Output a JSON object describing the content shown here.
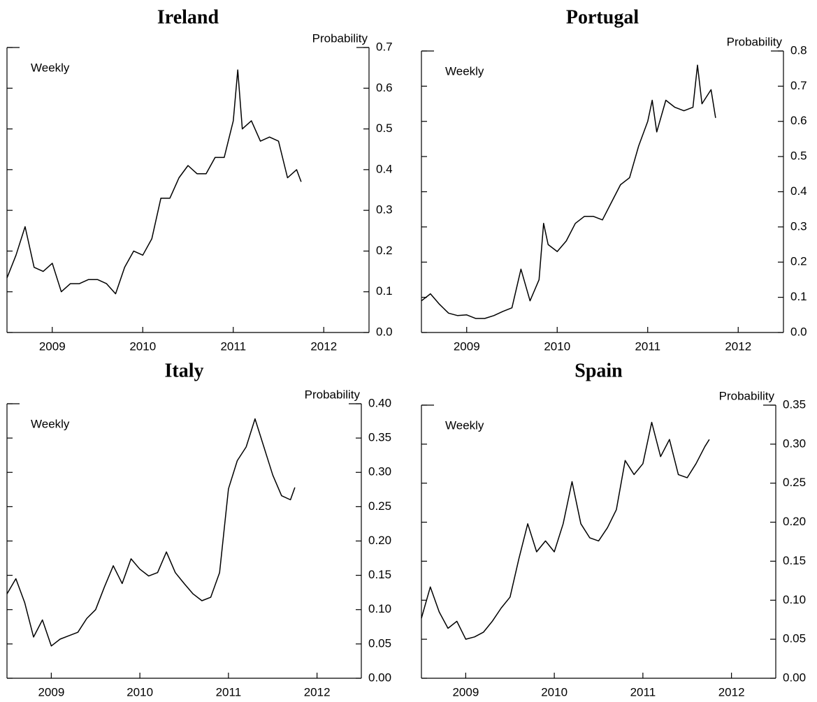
{
  "chart_data": [
    {
      "type": "line",
      "title": "Ireland",
      "ylabel": "Probability",
      "annotation": "Weekly",
      "color": "#000000",
      "x": [
        2009.0,
        2009.1,
        2009.2,
        2009.3,
        2009.4,
        2009.5,
        2009.6,
        2009.7,
        2009.8,
        2009.9,
        2010.0,
        2010.1,
        2010.2,
        2010.3,
        2010.4,
        2010.5,
        2010.6,
        2010.7,
        2010.8,
        2010.9,
        2011.0,
        2011.1,
        2011.2,
        2011.3,
        2011.4,
        2011.5,
        2011.55,
        2011.6,
        2011.7,
        2011.8,
        2011.9,
        2012.0,
        2012.1,
        2012.2,
        2012.25
      ],
      "values": [
        0.134,
        0.19,
        0.26,
        0.16,
        0.15,
        0.17,
        0.1,
        0.12,
        0.12,
        0.13,
        0.13,
        0.12,
        0.095,
        0.16,
        0.2,
        0.19,
        0.23,
        0.33,
        0.33,
        0.38,
        0.41,
        0.39,
        0.39,
        0.43,
        0.43,
        0.52,
        0.645,
        0.5,
        0.52,
        0.47,
        0.48,
        0.47,
        0.38,
        0.4,
        0.37
      ],
      "xlim": [
        2009,
        2013
      ],
      "xticks": [
        {
          "value": 2009.5,
          "label": "2009"
        },
        {
          "value": 2010.5,
          "label": "2010"
        },
        {
          "value": 2011.5,
          "label": "2011"
        },
        {
          "value": 2012.5,
          "label": "2012"
        }
      ],
      "ylim": [
        0,
        0.7
      ],
      "yticks": [
        {
          "value": 0,
          "label": "0.0"
        },
        0.1,
        0.2,
        0.3,
        0.4,
        0.5,
        0.6,
        0.7
      ]
    },
    {
      "type": "line",
      "title": "Portugal",
      "ylabel": "Probability",
      "annotation": "Weekly",
      "color": "#000000",
      "x": [
        2009.0,
        2009.1,
        2009.2,
        2009.3,
        2009.4,
        2009.5,
        2009.6,
        2009.7,
        2009.8,
        2009.9,
        2010.0,
        2010.1,
        2010.2,
        2010.3,
        2010.35,
        2010.4,
        2010.5,
        2010.6,
        2010.7,
        2010.8,
        2010.9,
        2011.0,
        2011.1,
        2011.2,
        2011.3,
        2011.4,
        2011.5,
        2011.55,
        2011.6,
        2011.7,
        2011.8,
        2011.9,
        2012.0,
        2012.05,
        2012.1,
        2012.2,
        2012.25
      ],
      "values": [
        0.09,
        0.11,
        0.08,
        0.055,
        0.048,
        0.05,
        0.04,
        0.04,
        0.048,
        0.06,
        0.07,
        0.18,
        0.09,
        0.15,
        0.31,
        0.25,
        0.23,
        0.26,
        0.31,
        0.33,
        0.33,
        0.32,
        0.37,
        0.42,
        0.44,
        0.53,
        0.6,
        0.66,
        0.57,
        0.66,
        0.64,
        0.63,
        0.64,
        0.76,
        0.65,
        0.69,
        0.61
      ],
      "xlim": [
        2009,
        2013
      ],
      "xticks": [
        {
          "value": 2009.5,
          "label": "2009"
        },
        {
          "value": 2010.5,
          "label": "2010"
        },
        {
          "value": 2011.5,
          "label": "2011"
        },
        {
          "value": 2012.5,
          "label": "2012"
        }
      ],
      "ylim": [
        0,
        0.8
      ],
      "yticks": [
        {
          "value": 0,
          "label": "0.0"
        },
        0.1,
        0.2,
        0.3,
        0.4,
        0.5,
        0.6,
        0.7,
        0.8
      ]
    },
    {
      "type": "line",
      "title": "Italy",
      "ylabel": "Probability",
      "annotation": "Weekly",
      "color": "#000000",
      "x": [
        2009.0,
        2009.1,
        2009.2,
        2009.3,
        2009.4,
        2009.5,
        2009.6,
        2009.7,
        2009.8,
        2009.9,
        2010.0,
        2010.1,
        2010.2,
        2010.3,
        2010.4,
        2010.5,
        2010.6,
        2010.7,
        2010.8,
        2010.9,
        2011.0,
        2011.1,
        2011.2,
        2011.3,
        2011.4,
        2011.5,
        2011.6,
        2011.7,
        2011.8,
        2011.9,
        2012.0,
        2012.1,
        2012.2,
        2012.25
      ],
      "values": [
        0.123,
        0.145,
        0.11,
        0.06,
        0.085,
        0.047,
        0.057,
        0.062,
        0.067,
        0.087,
        0.1,
        0.133,
        0.164,
        0.138,
        0.174,
        0.159,
        0.149,
        0.154,
        0.184,
        0.154,
        0.138,
        0.123,
        0.113,
        0.118,
        0.154,
        0.276,
        0.317,
        0.337,
        0.378,
        0.337,
        0.296,
        0.266,
        0.26,
        0.278
      ],
      "xlim": [
        2009,
        2013
      ],
      "xticks": [
        {
          "value": 2009.5,
          "label": "2009"
        },
        {
          "value": 2010.5,
          "label": "2010"
        },
        {
          "value": 2011.5,
          "label": "2011"
        },
        {
          "value": 2012.5,
          "label": "2012"
        }
      ],
      "ylim": [
        0,
        0.4
      ],
      "yticks": [
        {
          "value": 0,
          "label": "0.00"
        },
        0.05,
        {
          "value": 0.1,
          "label": "0.10"
        },
        0.15,
        {
          "value": 0.2,
          "label": "0.20"
        },
        0.25,
        {
          "value": 0.3,
          "label": "0.30"
        },
        0.35,
        {
          "value": 0.4,
          "label": "0.40"
        }
      ]
    },
    {
      "type": "line",
      "title": "Spain",
      "ylabel": "Probability",
      "annotation": "Weekly",
      "color": "#000000",
      "x": [
        2009.0,
        2009.1,
        2009.2,
        2009.3,
        2009.4,
        2009.5,
        2009.6,
        2009.7,
        2009.8,
        2009.9,
        2010.0,
        2010.1,
        2010.2,
        2010.3,
        2010.4,
        2010.5,
        2010.6,
        2010.7,
        2010.8,
        2010.9,
        2011.0,
        2011.1,
        2011.2,
        2011.3,
        2011.4,
        2011.5,
        2011.6,
        2011.7,
        2011.8,
        2011.9,
        2012.0,
        2012.1,
        2012.2,
        2012.25
      ],
      "values": [
        0.077,
        0.117,
        0.085,
        0.064,
        0.073,
        0.05,
        0.053,
        0.059,
        0.073,
        0.09,
        0.104,
        0.153,
        0.198,
        0.162,
        0.176,
        0.162,
        0.198,
        0.252,
        0.198,
        0.18,
        0.176,
        0.193,
        0.216,
        0.279,
        0.261,
        0.275,
        0.328,
        0.284,
        0.306,
        0.261,
        0.257,
        0.275,
        0.297,
        0.306
      ],
      "xlim": [
        2009,
        2013
      ],
      "xticks": [
        {
          "value": 2009.5,
          "label": "2009"
        },
        {
          "value": 2010.5,
          "label": "2010"
        },
        {
          "value": 2011.5,
          "label": "2011"
        },
        {
          "value": 2012.5,
          "label": "2012"
        }
      ],
      "ylim": [
        0,
        0.35
      ],
      "yticks": [
        {
          "value": 0,
          "label": "0.00"
        },
        0.05,
        {
          "value": 0.1,
          "label": "0.10"
        },
        0.15,
        {
          "value": 0.2,
          "label": "0.20"
        },
        0.25,
        {
          "value": 0.3,
          "label": "0.30"
        },
        0.35
      ]
    }
  ]
}
